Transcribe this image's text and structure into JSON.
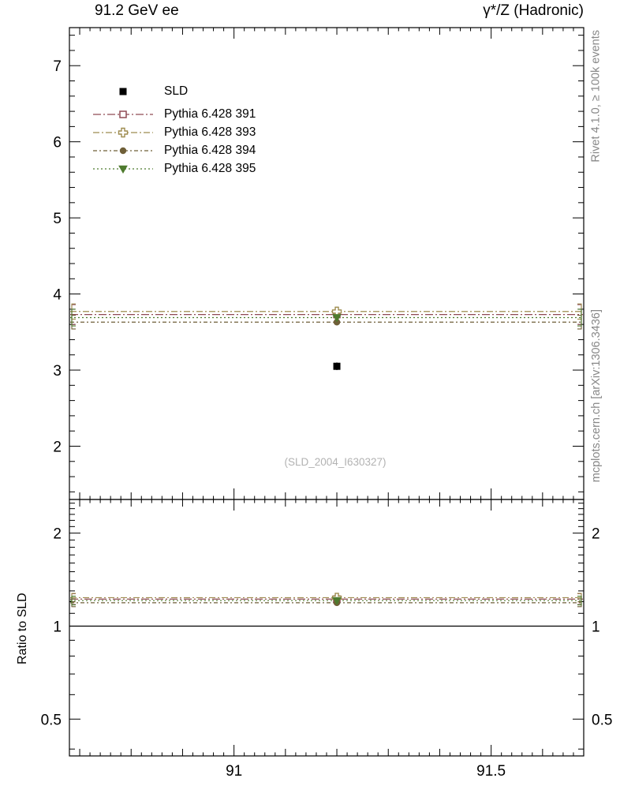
{
  "titles": {
    "left": "91.2 GeV ee",
    "right": "γ*/Z (Hadronic)"
  },
  "side_labels": {
    "top_right": "Rivet 4.1.0, ≥ 100k events",
    "bottom_right": "mcplots.cern.ch [arXiv:1306.3436]"
  },
  "watermark": "(SLD_2004_I630327)",
  "ratio_label": "Ratio to SLD",
  "chart_data": {
    "type": "scatter",
    "title": "91.2 GeV ee",
    "subtitle": "γ*/Z (Hadronic)",
    "x": {
      "range": [
        90.68,
        91.68
      ],
      "major_ticks": [
        91,
        91.5
      ],
      "tick_labels": [
        "91",
        "91.5"
      ],
      "minor_step": 0.1,
      "tiny_step": 0.02
    },
    "y_main": {
      "range": [
        1.3,
        7.5
      ],
      "scale": "linear",
      "major_ticks": [
        2,
        3,
        4,
        5,
        6,
        7
      ],
      "tick_labels": [
        "2",
        "3",
        "4",
        "5",
        "6",
        "7"
      ],
      "minor_step": 0.2
    },
    "y_ratio": {
      "range": [
        0.38,
        2.57
      ],
      "scale": "log",
      "major_ticks": [
        0.5,
        1,
        2
      ],
      "tick_labels": [
        "0.5",
        "1",
        "2"
      ],
      "minor_min": 0.4,
      "minor_max": 2.5,
      "minor_step": 0.1
    },
    "reference": {
      "name": "SLD",
      "x": 91.2,
      "y": 3.05,
      "err": 0.05,
      "marker": "filled-square",
      "color": "#000000"
    },
    "ratio_reference": 1.0,
    "series": [
      {
        "name": "Pythia 6.428 391",
        "x": 91.2,
        "y": 3.73,
        "ratio": 1.223,
        "err": 0.04,
        "band_half": 0.13,
        "ratio_band_half": 0.05,
        "color": "#8f4a54",
        "marker": "open-square",
        "dash": "10 3 2 3"
      },
      {
        "name": "Pythia 6.428 393",
        "x": 91.2,
        "y": 3.77,
        "ratio": 1.236,
        "err": 0.04,
        "band_half": 0.1,
        "ratio_band_half": 0.04,
        "color": "#9e8c4f",
        "marker": "open-cross",
        "dash": "8 3 2 3"
      },
      {
        "name": "Pythia 6.428 394",
        "x": 91.2,
        "y": 3.63,
        "ratio": 1.19,
        "err": 0.04,
        "band_half": 0.09,
        "ratio_band_half": 0.035,
        "color": "#6f5f38",
        "marker": "filled-circle",
        "dash": "5 3 2 3"
      },
      {
        "name": "Pythia 6.428 395",
        "x": 91.2,
        "y": 3.69,
        "ratio": 1.21,
        "err": 0.04,
        "band_half": 0.11,
        "ratio_band_half": 0.04,
        "color": "#4e7b2e",
        "marker": "filled-triangle-down",
        "dash": "2 3"
      }
    ]
  }
}
